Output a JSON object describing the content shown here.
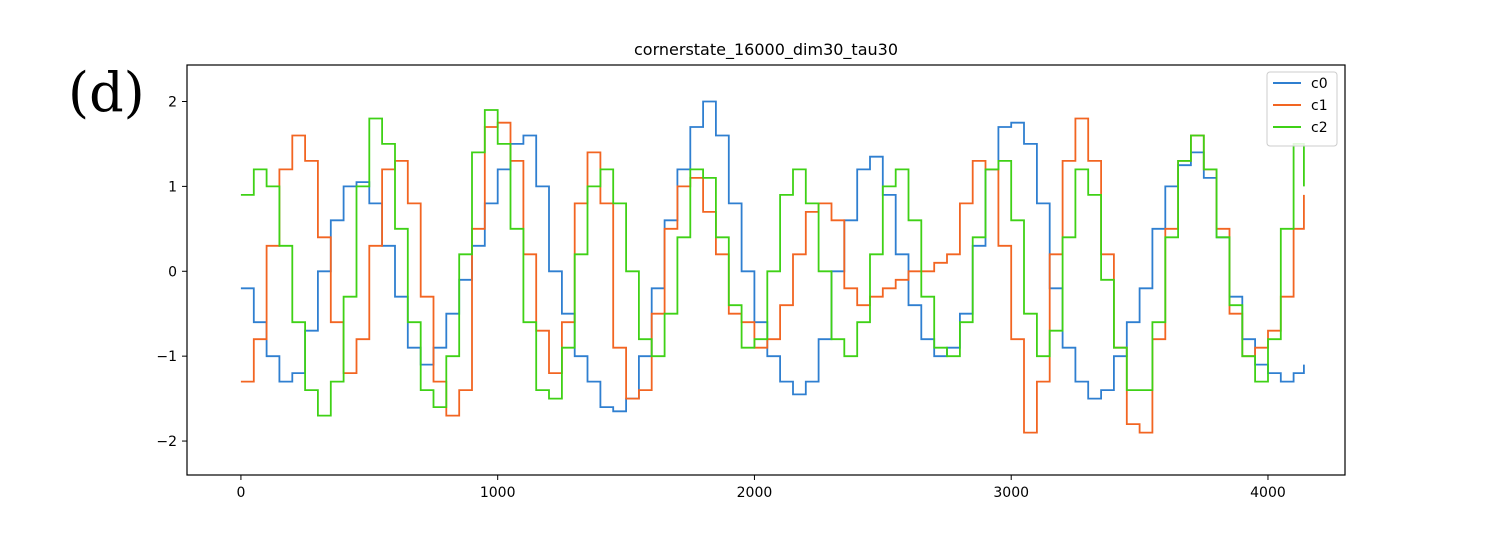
{
  "panel_label": "(d)",
  "chart_data": {
    "type": "line",
    "title": "cornerstate_16000_dim30_tau30",
    "xlabel": "",
    "ylabel": "",
    "xlim": [
      -210,
      4300
    ],
    "ylim": [
      -2.4,
      2.43
    ],
    "xticks": [
      0,
      1000,
      2000,
      3000,
      4000
    ],
    "xtick_labels": [
      "0",
      "1000",
      "2000",
      "3000",
      "4000"
    ],
    "yticks": [
      -2,
      -1,
      0,
      1,
      2
    ],
    "ytick_labels": [
      "−2",
      "−1",
      "0",
      "1",
      "2"
    ],
    "grid": false,
    "legend_position": "top-right",
    "series": [
      {
        "name": "c0",
        "color": "#2f7fd0",
        "x": [
          0,
          50,
          100,
          150,
          200,
          250,
          300,
          350,
          400,
          450,
          500,
          550,
          600,
          650,
          700,
          750,
          800,
          850,
          900,
          950,
          1000,
          1050,
          1100,
          1150,
          1200,
          1250,
          1300,
          1350,
          1400,
          1450,
          1500,
          1550,
          1600,
          1650,
          1700,
          1750,
          1800,
          1850,
          1900,
          1950,
          2000,
          2050,
          2100,
          2150,
          2200,
          2250,
          2300,
          2350,
          2400,
          2450,
          2500,
          2550,
          2600,
          2650,
          2700,
          2750,
          2800,
          2850,
          2900,
          2950,
          3000,
          3050,
          3100,
          3150,
          3200,
          3250,
          3300,
          3350,
          3400,
          3450,
          3500,
          3550,
          3600,
          3650,
          3700,
          3750,
          3800,
          3850,
          3900,
          3950,
          4000,
          4050,
          4100,
          4140
        ],
        "values": [
          -0.2,
          -0.6,
          -1.0,
          -1.3,
          -1.2,
          -0.7,
          0.0,
          0.6,
          1.0,
          1.05,
          0.8,
          0.3,
          -0.3,
          -0.9,
          -1.1,
          -0.9,
          -0.5,
          -0.1,
          0.3,
          0.8,
          1.2,
          1.5,
          1.6,
          1.0,
          0.0,
          -0.5,
          -1.0,
          -1.3,
          -1.6,
          -1.65,
          -1.5,
          -1.0,
          -0.2,
          0.6,
          1.2,
          1.7,
          2.0,
          1.6,
          0.8,
          0.0,
          -0.6,
          -1.0,
          -1.3,
          -1.45,
          -1.3,
          -0.8,
          0.0,
          0.6,
          1.2,
          1.35,
          0.9,
          0.2,
          -0.4,
          -0.8,
          -1.0,
          -0.9,
          -0.5,
          0.3,
          1.2,
          1.7,
          1.75,
          1.5,
          0.8,
          -0.2,
          -0.9,
          -1.3,
          -1.5,
          -1.4,
          -1.0,
          -0.6,
          -0.2,
          0.5,
          1.0,
          1.25,
          1.4,
          1.1,
          0.4,
          -0.3,
          -0.8,
          -1.1,
          -1.2,
          -1.3,
          -1.2,
          -1.1
        ]
      },
      {
        "name": "c1",
        "color": "#f26522",
        "x": [
          0,
          50,
          100,
          150,
          200,
          250,
          300,
          350,
          400,
          450,
          500,
          550,
          600,
          650,
          700,
          750,
          800,
          850,
          900,
          950,
          1000,
          1050,
          1100,
          1150,
          1200,
          1250,
          1300,
          1350,
          1400,
          1450,
          1500,
          1550,
          1600,
          1650,
          1700,
          1750,
          1800,
          1850,
          1900,
          1950,
          2000,
          2050,
          2100,
          2150,
          2200,
          2250,
          2300,
          2350,
          2400,
          2450,
          2500,
          2550,
          2600,
          2650,
          2700,
          2750,
          2800,
          2850,
          2900,
          2950,
          3000,
          3050,
          3100,
          3150,
          3200,
          3250,
          3300,
          3350,
          3400,
          3450,
          3500,
          3550,
          3600,
          3650,
          3700,
          3750,
          3800,
          3850,
          3900,
          3950,
          4000,
          4050,
          4100,
          4140
        ],
        "values": [
          -1.3,
          -0.8,
          0.3,
          1.2,
          1.6,
          1.3,
          0.4,
          -0.6,
          -1.2,
          -0.8,
          0.3,
          1.2,
          1.3,
          0.8,
          -0.3,
          -1.3,
          -1.7,
          -1.4,
          0.5,
          1.7,
          1.75,
          1.3,
          0.2,
          -0.7,
          -1.2,
          -0.6,
          0.8,
          1.4,
          0.8,
          -0.9,
          -1.5,
          -1.4,
          -0.5,
          0.5,
          1.0,
          1.1,
          0.7,
          0.2,
          -0.5,
          -0.6,
          -0.9,
          -0.8,
          -0.4,
          0.2,
          0.7,
          0.8,
          0.6,
          -0.2,
          -0.4,
          -0.3,
          -0.2,
          -0.1,
          0.0,
          0.0,
          0.1,
          0.2,
          0.8,
          1.3,
          1.2,
          0.3,
          -0.8,
          -1.9,
          -1.3,
          0.2,
          1.3,
          1.8,
          1.3,
          0.2,
          -0.9,
          -1.8,
          -1.9,
          -0.8,
          0.5,
          1.3,
          1.6,
          1.2,
          0.5,
          -0.5,
          -1.0,
          -0.9,
          -0.7,
          -0.3,
          0.5,
          0.9
        ]
      },
      {
        "name": "c2",
        "color": "#3fd116",
        "x": [
          0,
          50,
          100,
          150,
          200,
          250,
          300,
          350,
          400,
          450,
          500,
          550,
          600,
          650,
          700,
          750,
          800,
          850,
          900,
          950,
          1000,
          1050,
          1100,
          1150,
          1200,
          1250,
          1300,
          1350,
          1400,
          1450,
          1500,
          1550,
          1600,
          1650,
          1700,
          1750,
          1800,
          1850,
          1900,
          1950,
          2000,
          2050,
          2100,
          2150,
          2200,
          2250,
          2300,
          2350,
          2400,
          2450,
          2500,
          2550,
          2600,
          2650,
          2700,
          2750,
          2800,
          2850,
          2900,
          2950,
          3000,
          3050,
          3100,
          3150,
          3200,
          3250,
          3300,
          3350,
          3400,
          3450,
          3500,
          3550,
          3600,
          3650,
          3700,
          3750,
          3800,
          3850,
          3900,
          3950,
          4000,
          4050,
          4100,
          4140
        ],
        "values": [
          0.9,
          1.2,
          1.0,
          0.3,
          -0.6,
          -1.4,
          -1.7,
          -1.3,
          -0.3,
          1.0,
          1.8,
          1.5,
          0.5,
          -0.6,
          -1.4,
          -1.6,
          -1.0,
          0.2,
          1.4,
          1.9,
          1.5,
          0.5,
          -0.6,
          -1.4,
          -1.5,
          -0.9,
          0.2,
          1.0,
          1.2,
          0.8,
          0.0,
          -0.8,
          -1.0,
          -0.5,
          0.4,
          1.2,
          1.1,
          0.4,
          -0.4,
          -0.9,
          -0.8,
          0.0,
          0.9,
          1.2,
          0.8,
          0.0,
          -0.8,
          -1.0,
          -0.6,
          0.2,
          1.0,
          1.2,
          0.6,
          -0.3,
          -0.9,
          -1.0,
          -0.6,
          0.4,
          1.2,
          1.3,
          0.6,
          -0.5,
          -1.0,
          -0.7,
          0.4,
          1.2,
          0.9,
          -0.1,
          -0.9,
          -1.4,
          -1.4,
          -0.6,
          0.4,
          1.3,
          1.6,
          1.2,
          0.4,
          -0.4,
          -1.0,
          -1.3,
          -0.8,
          0.5,
          1.5,
          1.0
        ]
      }
    ]
  }
}
